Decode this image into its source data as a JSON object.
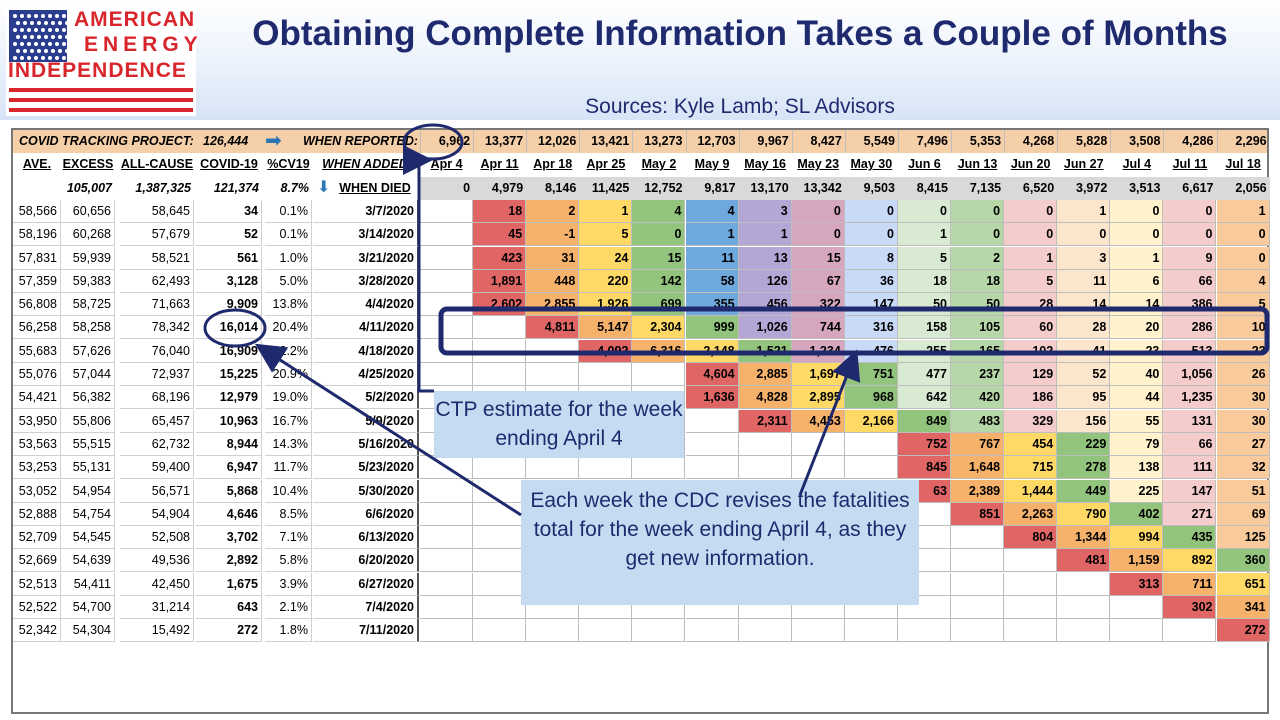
{
  "logo": {
    "line1": "AMERICAN",
    "line2": "ENERGY",
    "line3": "INDEPENDENCE"
  },
  "title": "Obtaining Complete Information Takes a Couple of Months",
  "subtitle": "Sources: Kyle Lamb; SL Advisors",
  "colors": {
    "accent": "#1f2a6e",
    "header_band": "#f5cfa8",
    "gray_header": "#d9d9d9",
    "callout": "#c5dbf1",
    "logo_red": "#d8262c",
    "flag_blue": "#2b3d8f"
  },
  "chart_data": {
    "type": "table",
    "ctp_label": "COVID TRACKING PROJECT:",
    "ctp_total": "126,444",
    "when_reported_label": "WHEN REPORTED:",
    "when_reported": [
      "6,962",
      "13,377",
      "12,026",
      "13,421",
      "13,273",
      "12,703",
      "9,967",
      "8,427",
      "5,549",
      "7,496",
      "5,353",
      "4,268",
      "5,828",
      "3,508",
      "4,286",
      "2,296"
    ],
    "left_headers": [
      "AVE.",
      "EXCESS",
      "ALL-CAUSE",
      "COVID-19",
      "%CV19"
    ],
    "when_added_label": "WHEN ADDED:",
    "weeks_added": [
      "Apr 4",
      "Apr 11",
      "Apr 18",
      "Apr 25",
      "May 2",
      "May 9",
      "May 16",
      "May 23",
      "May 30",
      "Jun 6",
      "Jun 13",
      "Jun 20",
      "Jun 27",
      "Jul 4",
      "Jul 11",
      "Jul 18"
    ],
    "totals_left": [
      "",
      "105,007",
      "1,387,325",
      "121,374",
      "8.7%"
    ],
    "when_died_label": "WHEN DIED",
    "added_totals": [
      "0",
      "4,979",
      "8,146",
      "11,425",
      "12,752",
      "9,817",
      "13,170",
      "13,342",
      "9,503",
      "8,415",
      "7,135",
      "6,520",
      "3,972",
      "3,513",
      "6,617",
      "2,056"
    ],
    "rows": [
      {
        "ave": "58,566",
        "excess": "60,656",
        "all_cause": "58,645",
        "covid": "34",
        "pct": "0.1%",
        "died": "3/7/2020",
        "cells": [
          "",
          "18",
          "2",
          "1",
          "4",
          "4",
          "3",
          "0",
          "0",
          "0",
          "0",
          "0",
          "1",
          "0",
          "0",
          "1"
        ]
      },
      {
        "ave": "58,196",
        "excess": "60,268",
        "all_cause": "57,679",
        "covid": "52",
        "pct": "0.1%",
        "died": "3/14/2020",
        "cells": [
          "",
          "45",
          "-1",
          "5",
          "0",
          "1",
          "1",
          "0",
          "0",
          "1",
          "0",
          "0",
          "0",
          "0",
          "0",
          "0"
        ]
      },
      {
        "ave": "57,831",
        "excess": "59,939",
        "all_cause": "58,521",
        "covid": "561",
        "pct": "1.0%",
        "died": "3/21/2020",
        "cells": [
          "",
          "423",
          "31",
          "24",
          "15",
          "11",
          "13",
          "15",
          "8",
          "5",
          "2",
          "1",
          "3",
          "1",
          "9",
          "0"
        ]
      },
      {
        "ave": "57,359",
        "excess": "59,383",
        "all_cause": "62,493",
        "covid": "3,128",
        "pct": "5.0%",
        "died": "3/28/2020",
        "cells": [
          "",
          "1,891",
          "448",
          "220",
          "142",
          "58",
          "126",
          "67",
          "36",
          "18",
          "18",
          "5",
          "11",
          "6",
          "66",
          "4"
        ]
      },
      {
        "ave": "56,808",
        "excess": "58,725",
        "all_cause": "71,663",
        "covid": "9,909",
        "pct": "13.8%",
        "died": "4/4/2020",
        "cells": [
          "",
          "2,602",
          "2,855",
          "1,926",
          "699",
          "355",
          "456",
          "322",
          "147",
          "50",
          "50",
          "28",
          "14",
          "14",
          "386",
          "5"
        ]
      },
      {
        "ave": "56,258",
        "excess": "58,258",
        "all_cause": "78,342",
        "covid": "16,014",
        "pct": "20.4%",
        "died": "4/11/2020",
        "cells": [
          "",
          "",
          "4,811",
          "5,147",
          "2,304",
          "999",
          "1,026",
          "744",
          "316",
          "158",
          "105",
          "60",
          "28",
          "20",
          "286",
          "10"
        ]
      },
      {
        "ave": "55,683",
        "excess": "57,626",
        "all_cause": "76,040",
        "covid": "16,909",
        "pct": "22.2%",
        "died": "4/18/2020",
        "cells": [
          "",
          "",
          "",
          "4,092",
          "6,316",
          "2,148",
          "1,521",
          "1,234",
          "476",
          "255",
          "165",
          "102",
          "41",
          "23",
          "513",
          "23"
        ]
      },
      {
        "ave": "55,076",
        "excess": "57,044",
        "all_cause": "72,937",
        "covid": "15,225",
        "pct": "20.9%",
        "died": "4/25/2020",
        "cells": [
          "",
          "",
          "",
          "",
          "",
          "4,604",
          "2,885",
          "1,697",
          "751",
          "477",
          "237",
          "129",
          "52",
          "40",
          "1,056",
          "26"
        ]
      },
      {
        "ave": "54,421",
        "excess": "56,382",
        "all_cause": "68,196",
        "covid": "12,979",
        "pct": "19.0%",
        "died": "5/2/2020",
        "cells": [
          "",
          "",
          "",
          "",
          "",
          "1,636",
          "4,828",
          "2,895",
          "968",
          "642",
          "420",
          "186",
          "95",
          "44",
          "1,235",
          "30"
        ]
      },
      {
        "ave": "53,950",
        "excess": "55,806",
        "all_cause": "65,457",
        "covid": "10,963",
        "pct": "16.7%",
        "died": "5/9/2020",
        "cells": [
          "",
          "",
          "",
          "",
          "",
          "",
          "2,311",
          "4,453",
          "2,166",
          "849",
          "483",
          "329",
          "156",
          "55",
          "131",
          "30"
        ]
      },
      {
        "ave": "53,563",
        "excess": "55,515",
        "all_cause": "62,732",
        "covid": "8,944",
        "pct": "14.3%",
        "died": "5/16/2020",
        "cells": [
          "",
          "",
          "",
          "",
          "",
          "",
          "",
          "",
          "",
          "752",
          "767",
          "454",
          "229",
          "79",
          "66",
          "27"
        ]
      },
      {
        "ave": "53,253",
        "excess": "55,131",
        "all_cause": "59,400",
        "covid": "6,947",
        "pct": "11.7%",
        "died": "5/23/2020",
        "cells": [
          "",
          "",
          "",
          "",
          "",
          "",
          "",
          "",
          "",
          "845",
          "1,648",
          "715",
          "278",
          "138",
          "111",
          "32"
        ]
      },
      {
        "ave": "53,052",
        "excess": "54,954",
        "all_cause": "56,571",
        "covid": "5,868",
        "pct": "10.4%",
        "died": "5/30/2020",
        "cells": [
          "",
          "",
          "",
          "",
          "",
          "",
          "",
          "",
          "",
          "63",
          "2,389",
          "1,444",
          "449",
          "225",
          "147",
          "51"
        ]
      },
      {
        "ave": "52,888",
        "excess": "54,754",
        "all_cause": "54,904",
        "covid": "4,646",
        "pct": "8.5%",
        "died": "6/6/2020",
        "cells": [
          "",
          "",
          "",
          "",
          "",
          "",
          "",
          "",
          "",
          "",
          "851",
          "2,263",
          "790",
          "402",
          "271",
          "69"
        ]
      },
      {
        "ave": "52,709",
        "excess": "54,545",
        "all_cause": "52,508",
        "covid": "3,702",
        "pct": "7.1%",
        "died": "6/13/2020",
        "cells": [
          "",
          "",
          "",
          "",
          "",
          "",
          "",
          "",
          "",
          "",
          "",
          "804",
          "1,344",
          "994",
          "435",
          "125"
        ]
      },
      {
        "ave": "52,669",
        "excess": "54,639",
        "all_cause": "49,536",
        "covid": "2,892",
        "pct": "5.8%",
        "died": "6/20/2020",
        "cells": [
          "",
          "",
          "",
          "",
          "",
          "",
          "",
          "",
          "",
          "",
          "",
          "",
          "481",
          "1,159",
          "892",
          "360"
        ]
      },
      {
        "ave": "52,513",
        "excess": "54,411",
        "all_cause": "42,450",
        "covid": "1,675",
        "pct": "3.9%",
        "died": "6/27/2020",
        "cells": [
          "",
          "",
          "",
          "",
          "",
          "",
          "",
          "",
          "",
          "",
          "",
          "",
          "",
          "313",
          "711",
          "651"
        ]
      },
      {
        "ave": "52,522",
        "excess": "54,700",
        "all_cause": "31,214",
        "covid": "643",
        "pct": "2.1%",
        "died": "7/4/2020",
        "cells": [
          "",
          "",
          "",
          "",
          "",
          "",
          "",
          "",
          "",
          "",
          "",
          "",
          "",
          "",
          "302",
          "341"
        ]
      },
      {
        "ave": "52,342",
        "excess": "54,304",
        "all_cause": "15,492",
        "covid": "272",
        "pct": "1.8%",
        "died": "7/11/2020",
        "cells": [
          "",
          "",
          "",
          "",
          "",
          "",
          "",
          "",
          "",
          "",
          "",
          "",
          "",
          "",
          "",
          "272"
        ]
      }
    ]
  },
  "callouts": {
    "ctp": "CTP estimate for the week ending April 4",
    "cdc": "Each week the CDC revises the fatalities total for the week ending April 4, as they get new information."
  }
}
